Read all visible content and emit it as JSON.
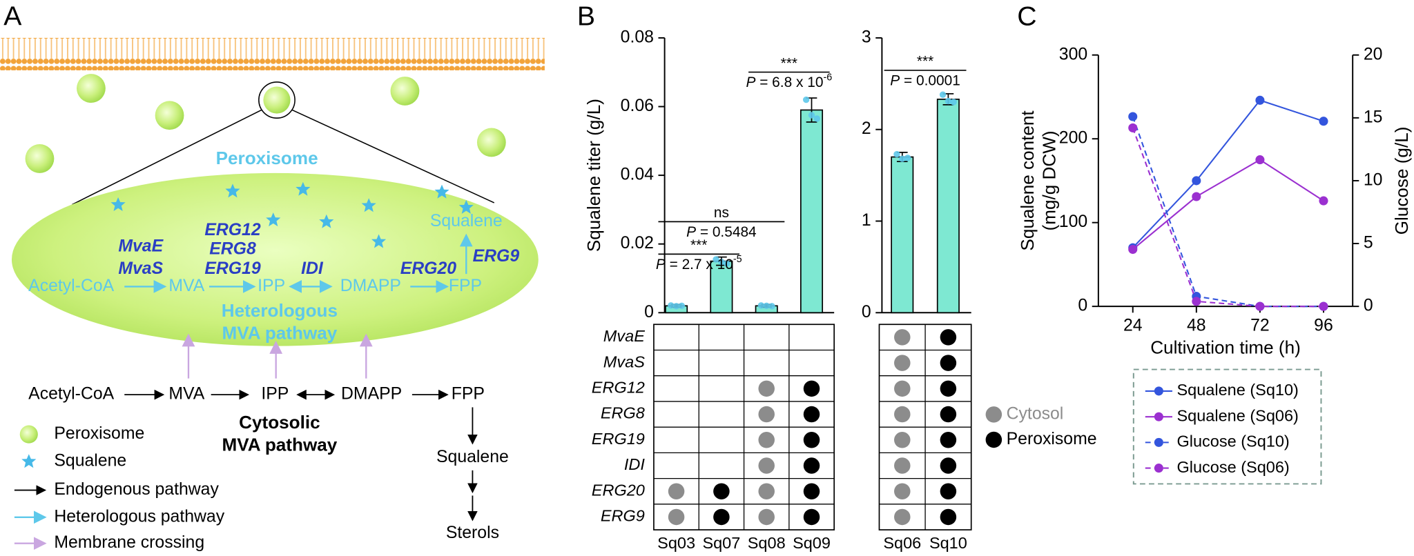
{
  "panel_labels": [
    "A",
    "B",
    "C"
  ],
  "diagram": {
    "organelle_label": "Peroxisome",
    "product_label": "Squalene",
    "genes": [
      "MvaE",
      "MvaS",
      "ERG12",
      "ERG8",
      "ERG19",
      "IDI",
      "ERG20",
      "ERG9"
    ],
    "heterologous_nodes": [
      "Acetyl-CoA",
      "MVA",
      "IPP",
      "DMAPP",
      "FPP"
    ],
    "heterologous_title": [
      "Heterologous",
      "MVA pathway"
    ],
    "cytosolic_nodes": [
      "Acetyl-CoA",
      "MVA",
      "IPP",
      "DMAPP",
      "FPP",
      "Squalene",
      "Sterols"
    ],
    "cytosolic_title": [
      "Cytosolic",
      "MVA pathway"
    ],
    "legend": [
      "Peroxisome",
      "Squalene",
      "Endogenous pathway",
      "Heterologous pathway",
      "Membrane crossing"
    ]
  },
  "matrix_legend": [
    {
      "label": "Cytosol",
      "color": "#8c8c8c"
    },
    {
      "label": "Peroxisome",
      "color": "#000000"
    }
  ],
  "chart_data": [
    {
      "type": "bar",
      "y_label": "Squalene titer (g/L)",
      "categories": [
        "Sq03",
        "Sq07",
        "Sq08",
        "Sq09"
      ],
      "values": [
        0.002,
        0.015,
        0.002,
        0.059
      ],
      "errors": [
        0.0004,
        0.0012,
        0.0004,
        0.0035
      ],
      "points": [
        [
          0.0021,
          0.0019,
          0.002
        ],
        [
          0.0155,
          0.0148,
          0.0143
        ],
        [
          0.0021,
          0.002,
          0.0019
        ],
        [
          0.062,
          0.0575,
          0.0565
        ]
      ],
      "color": "#7ee8d2",
      "ylim": [
        0,
        0.08
      ],
      "yticks": [
        0,
        0.02,
        0.04,
        0.06,
        0.08
      ],
      "annotations": [
        {
          "stars": "***",
          "p": "P",
          "text": " = 2.7 x 10",
          "exp": "-5"
        },
        {
          "stars": "ns",
          "p": "P",
          "text": " = 0.5484"
        },
        {
          "stars": "***",
          "p": "P",
          "text": " = 6.8 x 10",
          "exp": "-6"
        }
      ],
      "matrix": {
        "rows": [
          "MvaE",
          "MvaS",
          "ERG12",
          "ERG8",
          "ERG19",
          "IDI",
          "ERG20",
          "ERG9"
        ],
        "cells": [
          [
            null,
            null,
            null,
            null
          ],
          [
            null,
            null,
            null,
            null
          ],
          [
            null,
            null,
            0,
            1
          ],
          [
            null,
            null,
            0,
            1
          ],
          [
            null,
            null,
            0,
            1
          ],
          [
            null,
            null,
            0,
            1
          ],
          [
            0,
            1,
            0,
            1
          ],
          [
            0,
            1,
            0,
            1
          ]
        ]
      }
    },
    {
      "type": "bar",
      "categories": [
        "Sq06",
        "Sq10"
      ],
      "values": [
        1.7,
        2.33
      ],
      "errors": [
        0.05,
        0.06
      ],
      "points": [
        [
          1.73,
          1.68,
          1.69
        ],
        [
          2.38,
          2.31,
          2.3
        ]
      ],
      "color": "#7ee8d2",
      "ylim": [
        0,
        3
      ],
      "yticks": [
        0,
        1,
        2,
        3
      ],
      "annotations": [
        {
          "stars": "***",
          "p": "P",
          "text": " = 0.0001"
        }
      ],
      "matrix": {
        "cells": [
          [
            0,
            1
          ],
          [
            0,
            1
          ],
          [
            0,
            1
          ],
          [
            0,
            1
          ],
          [
            0,
            1
          ],
          [
            0,
            1
          ],
          [
            0,
            1
          ],
          [
            0,
            1
          ]
        ]
      }
    },
    {
      "type": "line",
      "y_label": [
        "Squalene content",
        "(mg/g DCW)"
      ],
      "y2_label": "Glucose (g/L)",
      "x_label": "Cultivation time (h)",
      "x": [
        24,
        48,
        72,
        96
      ],
      "xlim": [
        11,
        107
      ],
      "xticks": [
        24,
        48,
        72,
        96
      ],
      "ylim": [
        0,
        300
      ],
      "yticks": [
        0,
        100,
        200,
        300
      ],
      "y2lim": [
        0,
        20
      ],
      "y2ticks": [
        0,
        5,
        10,
        15,
        20
      ],
      "series": [
        {
          "name": "Squalene (Sq10)",
          "color": "#3355dd",
          "values": [
            70,
            150,
            246,
            221
          ]
        },
        {
          "name": "Squalene (Sq06)",
          "color": "#9b30d0",
          "values": [
            68,
            131,
            175,
            126
          ]
        },
        {
          "name": "Glucose (Sq10)",
          "color": "#3355dd",
          "dashed": true,
          "axis": "y2",
          "values": [
            15.1,
            0.8,
            0,
            0
          ]
        },
        {
          "name": "Glucose (Sq06)",
          "color": "#9b30d0",
          "dashed": true,
          "axis": "y2",
          "values": [
            14.2,
            0.4,
            0,
            0
          ]
        }
      ]
    }
  ]
}
